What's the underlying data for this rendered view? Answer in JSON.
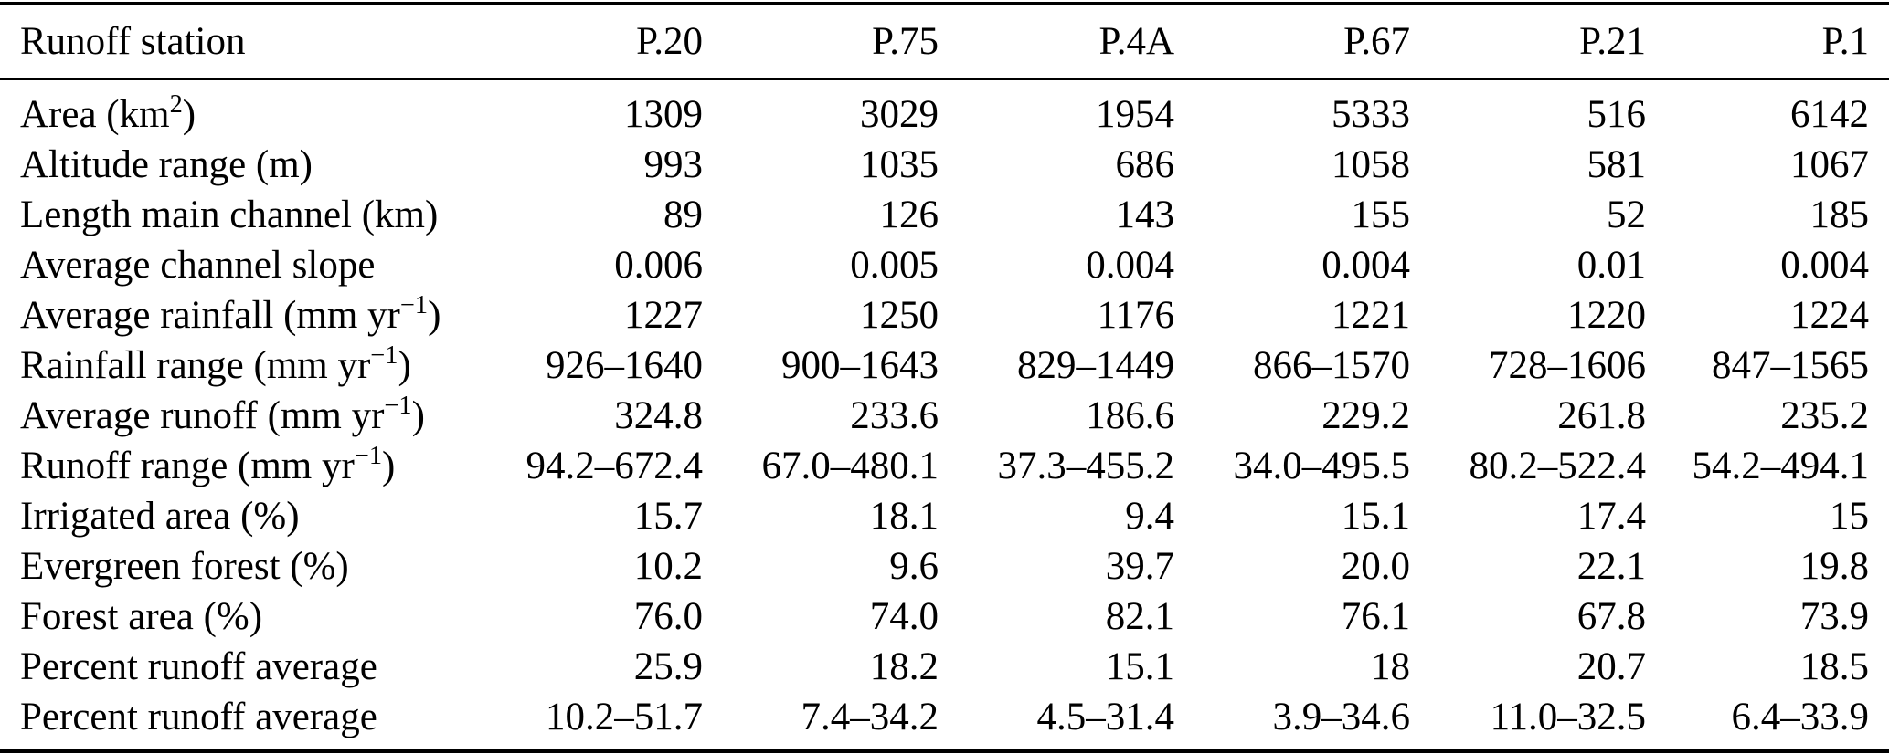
{
  "table": {
    "header": {
      "label": "Runoff station",
      "stations": [
        "P.20",
        "P.75",
        "P.4A",
        "P.67",
        "P.21",
        "P.1"
      ]
    },
    "rows": [
      {
        "label": {
          "pre": "Area (km",
          "sup": "2",
          "post": ")"
        },
        "values": [
          "1309",
          "3029",
          "1954",
          "5333",
          "516",
          "6142"
        ]
      },
      {
        "label": {
          "pre": "Altitude range (m)"
        },
        "values": [
          "993",
          "1035",
          "686",
          "1058",
          "581",
          "1067"
        ]
      },
      {
        "label": {
          "pre": "Length main channel (km)"
        },
        "values": [
          "89",
          "126",
          "143",
          "155",
          "52",
          "185"
        ]
      },
      {
        "label": {
          "pre": "Average channel slope"
        },
        "values": [
          "0.006",
          "0.005",
          "0.004",
          "0.004",
          "0.01",
          "0.004"
        ]
      },
      {
        "label": {
          "pre": "Average rainfall (mm yr",
          "sup": "−1",
          "post": ")"
        },
        "values": [
          "1227",
          "1250",
          "1176",
          "1221",
          "1220",
          "1224"
        ]
      },
      {
        "label": {
          "pre": "Rainfall range (mm yr",
          "sup": "−1",
          "post": ")"
        },
        "values": [
          "926–1640",
          "900–1643",
          "829–1449",
          "866–1570",
          "728–1606",
          "847–1565"
        ]
      },
      {
        "label": {
          "pre": "Average runoff (mm yr",
          "sup": "−1",
          "post": ")"
        },
        "values": [
          "324.8",
          "233.6",
          "186.6",
          "229.2",
          "261.8",
          "235.2"
        ]
      },
      {
        "label": {
          "pre": "Runoff range (mm yr",
          "sup": "−1",
          "post": ")"
        },
        "values": [
          "94.2–672.4",
          "67.0–480.1",
          "37.3–455.2",
          "34.0–495.5",
          "80.2–522.4",
          "54.2–494.1"
        ]
      },
      {
        "label": {
          "pre": "Irrigated area (%)"
        },
        "values": [
          "15.7",
          "18.1",
          "9.4",
          "15.1",
          "17.4",
          "15"
        ]
      },
      {
        "label": {
          "pre": "Evergreen forest (%)"
        },
        "values": [
          "10.2",
          "9.6",
          "39.7",
          "20.0",
          "22.1",
          "19.8"
        ]
      },
      {
        "label": {
          "pre": "Forest area (%)"
        },
        "values": [
          "76.0",
          "74.0",
          "82.1",
          "76.1",
          "67.8",
          "73.9"
        ]
      },
      {
        "label": {
          "pre": "Percent runoff average"
        },
        "values": [
          "25.9",
          "18.2",
          "15.1",
          "18",
          "20.7",
          "18.5"
        ]
      },
      {
        "label": {
          "pre": "Percent runoff average"
        },
        "values": [
          "10.2–51.7",
          "7.4–34.2",
          "4.5–31.4",
          "3.9–34.6",
          "11.0–32.5",
          "6.4–33.9"
        ]
      }
    ]
  }
}
